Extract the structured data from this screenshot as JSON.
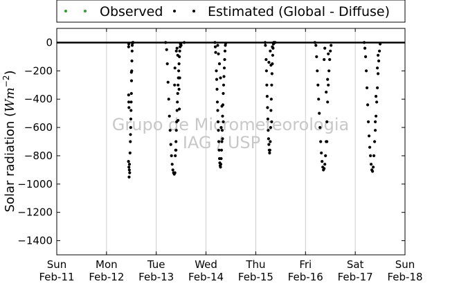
{
  "chart_data": {
    "type": "scatter",
    "title": "",
    "xlabel": "",
    "ylabel": "Solar radiation (W m^-2)",
    "ylabel_text": "Solar radiation (",
    "ylabel_unit": "Wm",
    "ylabel_exp": "−2",
    "ylabel_close": ")",
    "ylim": [
      -1500,
      100
    ],
    "xlim": [
      "2018-02-11",
      "2018-02-18"
    ],
    "yticks": [
      0,
      -200,
      -400,
      -600,
      -800,
      -1000,
      -1200,
      -1400
    ],
    "ytick_labels": [
      "0",
      "−200",
      "−400",
      "−600",
      "−800",
      "−1000",
      "−1200",
      "−1400"
    ],
    "xticks": [
      {
        "day": "Sun",
        "date": "Feb-11"
      },
      {
        "day": "Mon",
        "date": "Feb-12"
      },
      {
        "day": "Tue",
        "date": "Feb-13"
      },
      {
        "day": "Wed",
        "date": "Feb-14"
      },
      {
        "day": "Thu",
        "date": "Feb-15"
      },
      {
        "day": "Fri",
        "date": "Feb-16"
      },
      {
        "day": "Sat",
        "date": "Feb-17"
      },
      {
        "day": "Sun",
        "date": "Feb-18"
      }
    ],
    "grid": "vertical",
    "legend_position": "top-center",
    "watermark": [
      "Grupo de Micrometeorologia",
      "IAG / USP"
    ],
    "series": [
      {
        "name": "Observed",
        "color": "#2ca02c",
        "points": []
      },
      {
        "name": "Estimated (Global - Diffuse)",
        "color": "#000000",
        "points": [
          [
            "2018-02-12 10:36",
            -840
          ],
          [
            "2018-02-12 10:48",
            -880
          ],
          [
            "2018-02-12 10:55",
            -950
          ],
          [
            "2018-02-12 11:00",
            -900
          ],
          [
            "2018-02-12 11:05",
            -860
          ],
          [
            "2018-02-12 11:10",
            -920
          ],
          [
            "2018-02-12 10:45",
            -420
          ],
          [
            "2018-02-12 10:40",
            -370
          ],
          [
            "2018-02-12 10:50",
            -460
          ],
          [
            "2018-02-12 10:40",
            -30
          ],
          [
            "2018-02-12 10:45",
            -10
          ],
          [
            "2018-02-12 11:20",
            -780
          ],
          [
            "2018-02-12 11:30",
            -700
          ],
          [
            "2018-02-12 11:40",
            -600
          ],
          [
            "2018-02-12 11:45",
            -540
          ],
          [
            "2018-02-12 11:50",
            -480
          ],
          [
            "2018-02-12 11:55",
            -420
          ],
          [
            "2018-02-12 12:00",
            -360
          ],
          [
            "2018-02-12 12:05",
            -270
          ],
          [
            "2018-02-12 12:10",
            -200
          ],
          [
            "2018-02-12 12:15",
            -130
          ],
          [
            "2018-02-12 12:20",
            -60
          ],
          [
            "2018-02-12 12:25",
            -20
          ],
          [
            "2018-02-12 12:30",
            -5
          ],
          [
            "2018-02-12 12:40",
            0
          ],
          [
            "2018-02-12 12:50",
            0
          ],
          [
            "2018-02-12 11:35",
            -650
          ],
          [
            "2018-02-12 12:00",
            -210
          ],
          [
            "2018-02-13 04:30",
            0
          ],
          [
            "2018-02-13 05:00",
            -50
          ],
          [
            "2018-02-13 05:20",
            -150
          ],
          [
            "2018-02-13 05:40",
            -280
          ],
          [
            "2018-02-13 06:00",
            -400
          ],
          [
            "2018-02-13 06:20",
            -520
          ],
          [
            "2018-02-13 06:40",
            -620
          ],
          [
            "2018-02-13 07:00",
            -720
          ],
          [
            "2018-02-13 07:20",
            -800
          ],
          [
            "2018-02-13 07:40",
            -860
          ],
          [
            "2018-02-13 08:00",
            -900
          ],
          [
            "2018-02-13 08:20",
            -920
          ],
          [
            "2018-02-13 08:40",
            -930
          ],
          [
            "2018-02-13 09:00",
            -920
          ],
          [
            "2018-02-13 09:10",
            -800
          ],
          [
            "2018-02-13 09:20",
            -760
          ],
          [
            "2018-02-13 09:30",
            -700
          ],
          [
            "2018-02-13 09:40",
            -620
          ],
          [
            "2018-02-13 09:50",
            -560
          ],
          [
            "2018-02-13 10:00",
            -480
          ],
          [
            "2018-02-13 10:10",
            -420
          ],
          [
            "2018-02-13 10:20",
            -360
          ],
          [
            "2018-02-13 10:30",
            -300
          ],
          [
            "2018-02-13 10:40",
            -250
          ],
          [
            "2018-02-13 10:50",
            -200
          ],
          [
            "2018-02-13 11:00",
            -150
          ],
          [
            "2018-02-13 11:10",
            -100
          ],
          [
            "2018-02-13 11:20",
            -60
          ],
          [
            "2018-02-13 11:30",
            -30
          ],
          [
            "2018-02-13 11:40",
            -10
          ],
          [
            "2018-02-13 09:40",
            -60
          ],
          [
            "2018-02-13 10:00",
            -40
          ],
          [
            "2018-02-13 10:20",
            -90
          ],
          [
            "2018-02-13 11:00",
            -330
          ],
          [
            "2018-02-13 11:10",
            -470
          ],
          [
            "2018-02-13 11:20",
            -250
          ],
          [
            "2018-02-13 08:50",
            -300
          ],
          [
            "2018-02-13 09:00",
            -180
          ],
          [
            "2018-02-13 09:30",
            -760
          ],
          [
            "2018-02-13 10:30",
            -550
          ],
          [
            "2018-02-13 11:50",
            -10
          ],
          [
            "2018-02-13 13:30",
            0
          ],
          [
            "2018-02-13 12:00",
            -20
          ],
          [
            "2018-02-14 04:20",
            0
          ],
          [
            "2018-02-14 04:30",
            -30
          ],
          [
            "2018-02-14 04:40",
            -70
          ],
          [
            "2018-02-14 05:00",
            -200
          ],
          [
            "2018-02-14 05:10",
            -260
          ],
          [
            "2018-02-14 05:20",
            -330
          ],
          [
            "2018-02-14 05:30",
            -420
          ],
          [
            "2018-02-14 05:40",
            -480
          ],
          [
            "2018-02-14 05:50",
            -560
          ],
          [
            "2018-02-14 06:00",
            -620
          ],
          [
            "2018-02-14 06:10",
            -700
          ],
          [
            "2018-02-14 06:20",
            -760
          ],
          [
            "2018-02-14 06:30",
            -820
          ],
          [
            "2018-02-14 06:40",
            -850
          ],
          [
            "2018-02-14 06:50",
            -870
          ],
          [
            "2018-02-14 07:00",
            -880
          ],
          [
            "2018-02-14 07:10",
            -860
          ],
          [
            "2018-02-14 07:20",
            -820
          ],
          [
            "2018-02-14 07:30",
            -760
          ],
          [
            "2018-02-14 07:40",
            -700
          ],
          [
            "2018-02-14 07:50",
            -620
          ],
          [
            "2018-02-14 08:00",
            -520
          ],
          [
            "2018-02-14 08:10",
            -440
          ],
          [
            "2018-02-14 08:20",
            -360
          ],
          [
            "2018-02-14 08:30",
            -300
          ],
          [
            "2018-02-14 08:40",
            -240
          ],
          [
            "2018-02-14 08:50",
            -180
          ],
          [
            "2018-02-14 09:00",
            -120
          ],
          [
            "2018-02-14 09:10",
            -60
          ],
          [
            "2018-02-14 09:20",
            -20
          ],
          [
            "2018-02-14 09:30",
            -5
          ],
          [
            "2018-02-14 06:00",
            -80
          ],
          [
            "2018-02-14 06:30",
            -150
          ],
          [
            "2018-02-14 07:00",
            -250
          ],
          [
            "2018-02-14 07:40",
            -450
          ],
          [
            "2018-02-14 08:00",
            -680
          ],
          [
            "2018-02-14 08:20",
            -560
          ],
          [
            "2018-02-14 07:20",
            -600
          ],
          [
            "2018-02-14 05:40",
            -20
          ],
          [
            "2018-02-15 04:30",
            0
          ],
          [
            "2018-02-15 04:40",
            -20
          ],
          [
            "2018-02-15 05:00",
            -120
          ],
          [
            "2018-02-15 05:10",
            -200
          ],
          [
            "2018-02-15 05:20",
            -300
          ],
          [
            "2018-02-15 05:30",
            -380
          ],
          [
            "2018-02-15 05:40",
            -460
          ],
          [
            "2018-02-15 05:50",
            -540
          ],
          [
            "2018-02-15 06:00",
            -620
          ],
          [
            "2018-02-15 06:10",
            -680
          ],
          [
            "2018-02-15 06:20",
            -720
          ],
          [
            "2018-02-15 06:30",
            -760
          ],
          [
            "2018-02-15 06:40",
            -780
          ],
          [
            "2018-02-15 06:50",
            -760
          ],
          [
            "2018-02-15 07:00",
            -700
          ],
          [
            "2018-02-15 07:10",
            -600
          ],
          [
            "2018-02-15 07:20",
            -480
          ],
          [
            "2018-02-15 07:30",
            -400
          ],
          [
            "2018-02-15 07:40",
            -300
          ],
          [
            "2018-02-15 07:50",
            -220
          ],
          [
            "2018-02-15 08:00",
            -150
          ],
          [
            "2018-02-15 08:10",
            -90
          ],
          [
            "2018-02-15 08:20",
            -40
          ],
          [
            "2018-02-15 08:30",
            -10
          ],
          [
            "2018-02-15 08:40",
            0
          ],
          [
            "2018-02-15 09:00",
            0
          ],
          [
            "2018-02-15 06:20",
            -140
          ],
          [
            "2018-02-15 07:00",
            -60
          ],
          [
            "2018-02-15 07:20",
            -160
          ],
          [
            "2018-02-15 07:40",
            -560
          ],
          [
            "2018-02-15 08:00",
            -30
          ],
          [
            "2018-02-15 09:20",
            0
          ],
          [
            "2018-02-16 04:30",
            0
          ],
          [
            "2018-02-16 05:00",
            -20
          ],
          [
            "2018-02-16 05:20",
            -100
          ],
          [
            "2018-02-16 05:40",
            -200
          ],
          [
            "2018-02-16 06:00",
            -300
          ],
          [
            "2018-02-16 06:20",
            -400
          ],
          [
            "2018-02-16 06:40",
            -500
          ],
          [
            "2018-02-16 07:00",
            -600
          ],
          [
            "2018-02-16 07:20",
            -700
          ],
          [
            "2018-02-16 07:40",
            -780
          ],
          [
            "2018-02-16 08:00",
            -840
          ],
          [
            "2018-02-16 08:20",
            -880
          ],
          [
            "2018-02-16 08:40",
            -900
          ],
          [
            "2018-02-16 09:00",
            -890
          ],
          [
            "2018-02-16 09:20",
            -860
          ],
          [
            "2018-02-16 09:40",
            -800
          ],
          [
            "2018-02-16 10:00",
            -700
          ],
          [
            "2018-02-16 10:20",
            -560
          ],
          [
            "2018-02-16 10:40",
            -420
          ],
          [
            "2018-02-16 11:00",
            -300
          ],
          [
            "2018-02-16 11:20",
            -200
          ],
          [
            "2018-02-16 11:40",
            -120
          ],
          [
            "2018-02-16 12:00",
            -60
          ],
          [
            "2018-02-16 12:20",
            -20
          ],
          [
            "2018-02-16 09:00",
            -120
          ],
          [
            "2018-02-16 09:20",
            -40
          ],
          [
            "2018-02-16 10:00",
            -350
          ],
          [
            "2018-02-16 10:20",
            -700
          ],
          [
            "2018-02-16 10:40",
            -260
          ],
          [
            "2018-02-16 11:00",
            -80
          ],
          [
            "2018-02-17 04:20",
            0
          ],
          [
            "2018-02-17 04:40",
            -40
          ],
          [
            "2018-02-17 05:00",
            -100
          ],
          [
            "2018-02-17 05:20",
            -200
          ],
          [
            "2018-02-17 05:40",
            -320
          ],
          [
            "2018-02-17 06:00",
            -440
          ],
          [
            "2018-02-17 06:20",
            -560
          ],
          [
            "2018-02-17 06:40",
            -660
          ],
          [
            "2018-02-17 07:00",
            -740
          ],
          [
            "2018-02-17 07:20",
            -800
          ],
          [
            "2018-02-17 07:40",
            -860
          ],
          [
            "2018-02-17 08:00",
            -900
          ],
          [
            "2018-02-17 08:20",
            -910
          ],
          [
            "2018-02-17 08:40",
            -880
          ],
          [
            "2018-02-17 09:00",
            -800
          ],
          [
            "2018-02-17 09:20",
            -700
          ],
          [
            "2018-02-17 09:40",
            -620
          ],
          [
            "2018-02-17 10:00",
            -520
          ],
          [
            "2018-02-17 10:20",
            -420
          ],
          [
            "2018-02-17 10:40",
            -320
          ],
          [
            "2018-02-17 11:00",
            -220
          ],
          [
            "2018-02-17 11:20",
            -130
          ],
          [
            "2018-02-17 11:40",
            -60
          ],
          [
            "2018-02-17 12:00",
            -10
          ],
          [
            "2018-02-17 09:40",
            -560
          ],
          [
            "2018-02-17 10:00",
            -380
          ],
          [
            "2018-02-17 10:40",
            -180
          ],
          [
            "2018-02-17 11:00",
            -90
          ]
        ]
      }
    ]
  }
}
